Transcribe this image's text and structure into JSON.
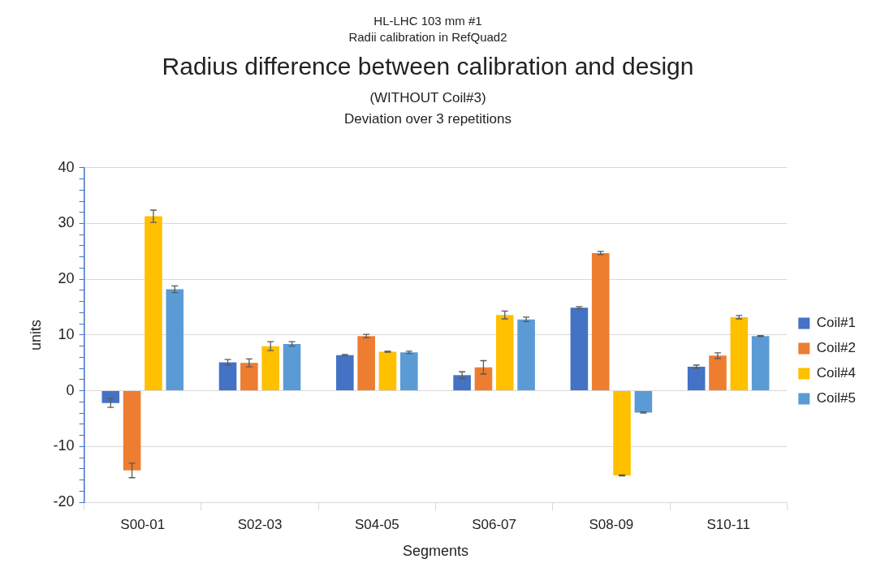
{
  "chart_data": {
    "type": "bar",
    "annotations": [
      "HL-LHC 103 mm #1",
      "Radii calibration in RefQuad2"
    ],
    "title": "Radius difference between calibration and design",
    "subtitle": "(WITHOUT Coil#3)\nDeviation over 3 repetitions",
    "xlabel": "Segments",
    "ylabel": "units",
    "categories": [
      "S00-01",
      "S02-03",
      "S04-05",
      "S06-07",
      "S08-09",
      "S10-11"
    ],
    "series": [
      {
        "name": "Coil#1",
        "color": "#4472c4",
        "values": [
          -2.2,
          5.1,
          6.4,
          2.8,
          14.9,
          4.3
        ],
        "errors": [
          0.8,
          0.5,
          0.1,
          0.6,
          0.2,
          0.3
        ]
      },
      {
        "name": "Coil#2",
        "color": "#ed7d31",
        "values": [
          -14.3,
          5.0,
          9.8,
          4.2,
          24.7,
          6.3
        ],
        "errors": [
          1.3,
          0.7,
          0.3,
          1.2,
          0.3,
          0.5
        ]
      },
      {
        "name": "Coil#4",
        "color": "#ffc000",
        "values": [
          31.3,
          8.0,
          7.0,
          13.6,
          -15.2,
          13.2
        ],
        "errors": [
          1.1,
          0.8,
          0.1,
          0.7,
          0.1,
          0.3
        ]
      },
      {
        "name": "Coil#5",
        "color": "#5b9bd5",
        "values": [
          18.2,
          8.4,
          6.9,
          12.8,
          -3.9,
          9.8
        ],
        "errors": [
          0.6,
          0.4,
          0.2,
          0.4,
          0.1,
          0.1
        ]
      }
    ],
    "ylim": [
      -20,
      40
    ],
    "yticks": [
      -20,
      {
        "value": -18,
        "label": null
      },
      {
        "value": -16,
        "label": null
      },
      {
        "value": -14,
        "label": null
      },
      {
        "value": -12,
        "label": null
      },
      -10,
      {
        "value": -8,
        "label": null
      },
      {
        "value": -6,
        "label": null
      },
      {
        "value": -4,
        "label": null
      },
      {
        "value": -2,
        "label": null
      },
      0,
      {
        "value": 2,
        "label": null
      },
      {
        "value": 4,
        "label": null
      },
      {
        "value": 6,
        "label": null
      },
      {
        "value": 8,
        "label": null
      },
      10,
      {
        "value": 12,
        "label": null
      },
      {
        "value": 14,
        "label": null
      },
      {
        "value": 16,
        "label": null
      },
      {
        "value": 18,
        "label": null
      },
      20,
      {
        "value": 22,
        "label": null
      },
      {
        "value": 24,
        "label": null
      },
      {
        "value": 26,
        "label": null
      },
      {
        "value": 28,
        "label": null
      },
      30,
      {
        "value": 32,
        "label": null
      },
      {
        "value": 34,
        "label": null
      },
      {
        "value": 36,
        "label": null
      },
      {
        "value": 38,
        "label": null
      },
      40
    ],
    "grid": "y",
    "legend": "right"
  }
}
